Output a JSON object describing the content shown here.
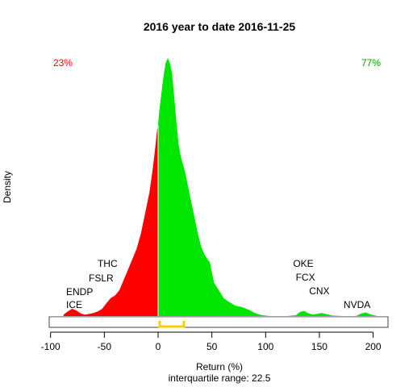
{
  "chart_data": {
    "type": "area",
    "title": "2016  year to date 2016-11-25",
    "xlabel": "Return (%)",
    "ylabel": "Density",
    "subtitle": "interquartile range: 22.5",
    "xlim": [
      -100,
      210
    ],
    "xticks": [
      "-100",
      "-50",
      "0",
      "50",
      "100",
      "150",
      "200"
    ],
    "xtick_values": [
      -100,
      -50,
      0,
      50,
      100,
      150,
      200
    ],
    "grid": false,
    "negative_share": "23%",
    "positive_share": "77%",
    "colors": {
      "negative": "#ff0000",
      "positive": "#00e600",
      "iqr_bracket": "#ffcc00",
      "zero_line": "#ffffff",
      "rug": "#bfbfbf"
    },
    "interquartile": {
      "q1": 1.5,
      "q3": 24
    },
    "density_curve": [
      [
        -88,
        0.005
      ],
      [
        -84,
        0.018
      ],
      [
        -80,
        0.028
      ],
      [
        -76,
        0.022
      ],
      [
        -72,
        0.01
      ],
      [
        -68,
        0.005
      ],
      [
        -64,
        0.008
      ],
      [
        -60,
        0.012
      ],
      [
        -56,
        0.018
      ],
      [
        -52,
        0.028
      ],
      [
        -48,
        0.05
      ],
      [
        -44,
        0.07
      ],
      [
        -40,
        0.08
      ],
      [
        -36,
        0.1
      ],
      [
        -32,
        0.14
      ],
      [
        -28,
        0.18
      ],
      [
        -24,
        0.22
      ],
      [
        -20,
        0.26
      ],
      [
        -16,
        0.32
      ],
      [
        -12,
        0.4
      ],
      [
        -8,
        0.48
      ],
      [
        -5,
        0.57
      ],
      [
        -3,
        0.64
      ],
      [
        -1,
        0.72
      ],
      [
        0,
        0.74
      ],
      [
        1,
        0.79
      ],
      [
        3,
        0.86
      ],
      [
        5,
        0.93
      ],
      [
        7,
        0.98
      ],
      [
        9,
        1.0
      ],
      [
        11,
        0.98
      ],
      [
        13,
        0.94
      ],
      [
        15,
        0.85
      ],
      [
        17,
        0.75
      ],
      [
        19,
        0.67
      ],
      [
        21,
        0.62
      ],
      [
        23,
        0.59
      ],
      [
        25,
        0.56
      ],
      [
        28,
        0.5
      ],
      [
        31,
        0.44
      ],
      [
        34,
        0.38
      ],
      [
        37,
        0.32
      ],
      [
        40,
        0.27
      ],
      [
        43,
        0.24
      ],
      [
        46,
        0.22
      ],
      [
        48,
        0.21
      ],
      [
        50,
        0.17
      ],
      [
        52,
        0.13
      ],
      [
        55,
        0.11
      ],
      [
        58,
        0.09
      ],
      [
        61,
        0.07
      ],
      [
        64,
        0.06
      ],
      [
        68,
        0.05
      ],
      [
        72,
        0.04
      ],
      [
        78,
        0.035
      ],
      [
        84,
        0.025
      ],
      [
        90,
        0.012
      ],
      [
        96,
        0.004
      ],
      [
        104,
        0.0
      ],
      [
        120,
        0.0
      ],
      [
        128,
        0.003
      ],
      [
        132,
        0.016
      ],
      [
        136,
        0.02
      ],
      [
        140,
        0.01
      ],
      [
        144,
        0.006
      ],
      [
        148,
        0.008
      ],
      [
        152,
        0.012
      ],
      [
        156,
        0.008
      ],
      [
        162,
        0.002
      ],
      [
        172,
        0.0
      ],
      [
        184,
        0.0
      ],
      [
        188,
        0.008
      ],
      [
        193,
        0.014
      ],
      [
        198,
        0.006
      ],
      [
        204,
        0.0
      ]
    ],
    "annotations": [
      {
        "text": "THC",
        "x": -47
      },
      {
        "text": "FSLR",
        "x": -53
      },
      {
        "text": "ENDP",
        "x": -73
      },
      {
        "text": "ICE",
        "x": -78
      },
      {
        "text": "OKE",
        "x": 135
      },
      {
        "text": "FCX",
        "x": 137
      },
      {
        "text": "CNX",
        "x": 150
      },
      {
        "text": "NVDA",
        "x": 185
      }
    ]
  }
}
